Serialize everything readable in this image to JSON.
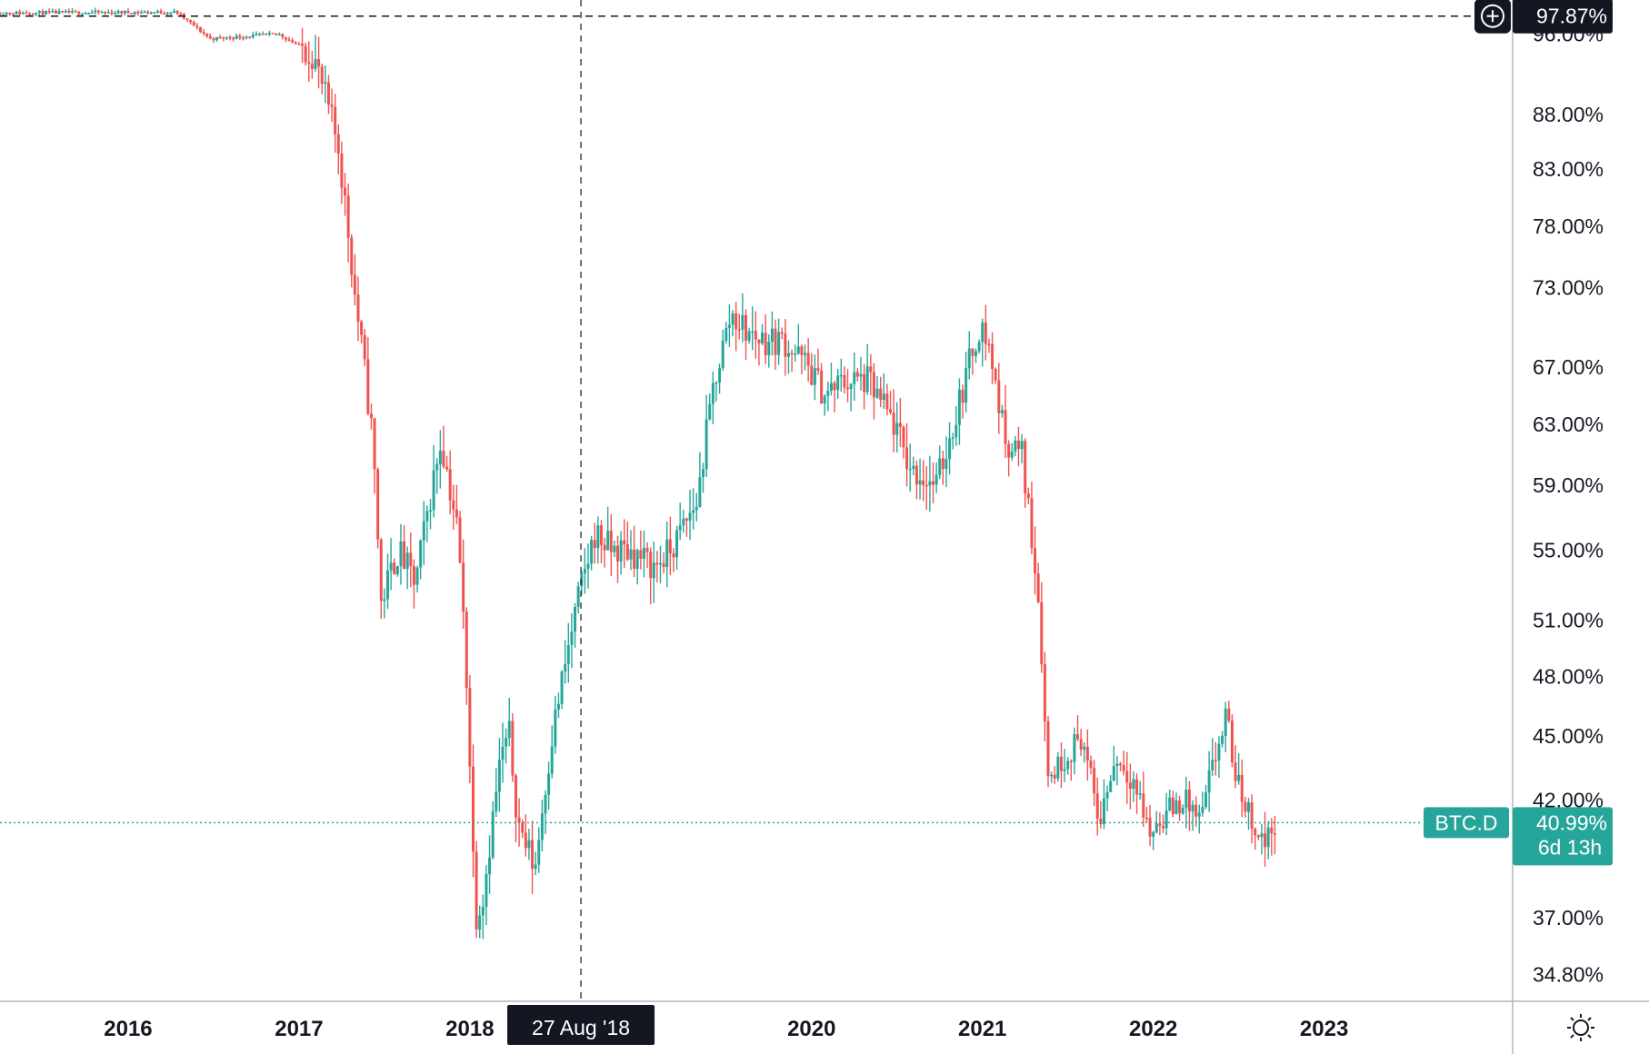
{
  "chart_data": {
    "type": "candlestick",
    "symbol": "BTC.D",
    "scale": "log",
    "ylim": [
      34.0,
      99.0
    ],
    "y_ticks": [
      "34.80%",
      "37.00%",
      "42.00%",
      "45.00%",
      "48.00%",
      "51.00%",
      "55.00%",
      "59.00%",
      "63.00%",
      "67.00%",
      "73.00%",
      "78.00%",
      "83.00%",
      "88.00%",
      "96.00%"
    ],
    "x_ticks": [
      "2016",
      "2017",
      "2018",
      "19",
      "2020",
      "2021",
      "2022",
      "2023"
    ],
    "x_tick_years": [
      2016,
      2017,
      2018,
      2019,
      2020,
      2021,
      2022,
      2023
    ],
    "x_range_years": [
      2015.25,
      2023.55
    ],
    "price_marker": {
      "value": "97.87%"
    },
    "current": {
      "symbol": "BTC.D",
      "value": "40.99%",
      "countdown": "6d 13h",
      "price": 40.99
    },
    "crosshair": {
      "date_label": "27 Aug '18",
      "year": 2018.65
    },
    "colors": {
      "up": "#26a69a",
      "down": "#ef5350",
      "text": "#131722",
      "grid": "#b2b5be",
      "tag_dark": "#131722",
      "current": "#26a69a"
    },
    "gridlines": false,
    "anchors": [
      [
        2015.25,
        98.2
      ],
      [
        2016.3,
        98.3
      ],
      [
        2016.5,
        95.5
      ],
      [
        2016.9,
        96.0
      ],
      [
        2017.1,
        94.0
      ],
      [
        2017.25,
        85.0
      ],
      [
        2017.35,
        72.0
      ],
      [
        2017.45,
        62.0
      ],
      [
        2017.5,
        52.0
      ],
      [
        2017.6,
        55.0
      ],
      [
        2017.7,
        53.0
      ],
      [
        2017.85,
        62.0
      ],
      [
        2017.95,
        56.0
      ],
      [
        2018.0,
        48.0
      ],
      [
        2018.05,
        37.0
      ],
      [
        2018.1,
        38.0
      ],
      [
        2018.2,
        44.0
      ],
      [
        2018.25,
        45.0
      ],
      [
        2018.3,
        41.0
      ],
      [
        2018.4,
        39.0
      ],
      [
        2018.5,
        45.0
      ],
      [
        2018.65,
        52.0
      ],
      [
        2018.75,
        56.0
      ],
      [
        2018.85,
        55.0
      ],
      [
        2018.95,
        55.0
      ],
      [
        2019.1,
        54.0
      ],
      [
        2019.2,
        55.0
      ],
      [
        2019.35,
        58.0
      ],
      [
        2019.45,
        66.0
      ],
      [
        2019.55,
        71.0
      ],
      [
        2019.65,
        69.5
      ],
      [
        2019.75,
        69.0
      ],
      [
        2019.85,
        69.0
      ],
      [
        2020.0,
        67.0
      ],
      [
        2020.1,
        65.0
      ],
      [
        2020.2,
        66.0
      ],
      [
        2020.35,
        66.0
      ],
      [
        2020.5,
        63.0
      ],
      [
        2020.6,
        60.0
      ],
      [
        2020.75,
        59.0
      ],
      [
        2020.85,
        63.0
      ],
      [
        2021.0,
        70.0
      ],
      [
        2021.05,
        69.0
      ],
      [
        2021.15,
        62.0
      ],
      [
        2021.25,
        61.0
      ],
      [
        2021.35,
        52.0
      ],
      [
        2021.4,
        43.0
      ],
      [
        2021.5,
        44.0
      ],
      [
        2021.6,
        45.0
      ],
      [
        2021.7,
        41.0
      ],
      [
        2021.8,
        44.0
      ],
      [
        2021.9,
        43.0
      ],
      [
        2022.0,
        40.5
      ],
      [
        2022.1,
        41.5
      ],
      [
        2022.2,
        42.0
      ],
      [
        2022.3,
        41.0
      ],
      [
        2022.35,
        43.0
      ],
      [
        2022.45,
        46.0
      ],
      [
        2022.5,
        43.0
      ],
      [
        2022.6,
        41.0
      ],
      [
        2022.68,
        40.0
      ],
      [
        2022.72,
        40.99
      ]
    ]
  }
}
